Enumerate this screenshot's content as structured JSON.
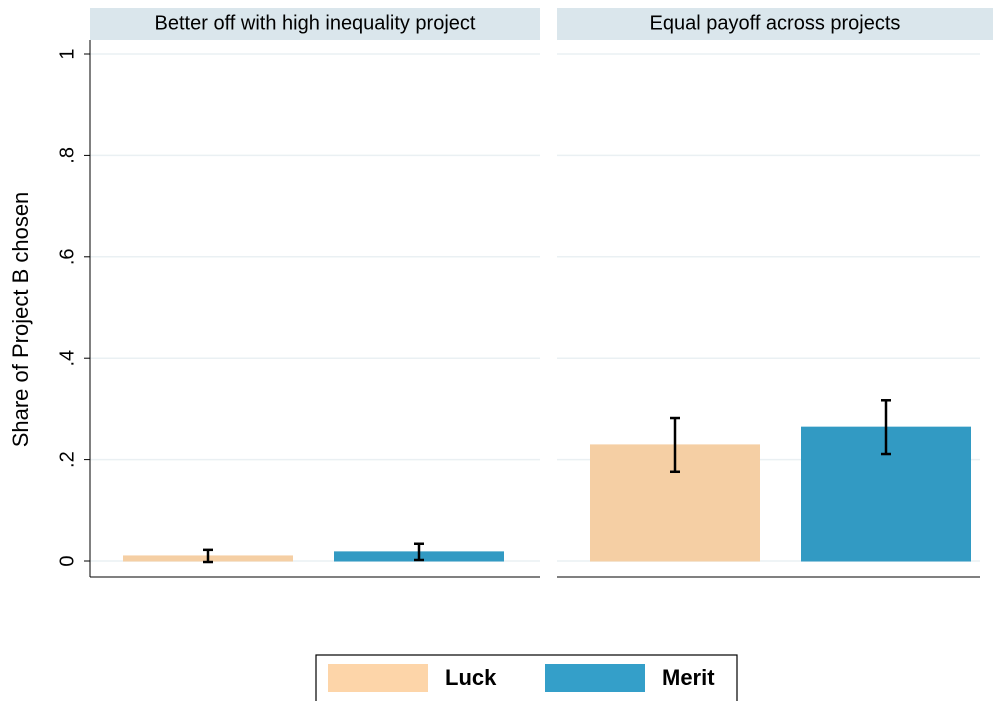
{
  "chart_data": [
    {
      "type": "bar",
      "title": "Better off with high inequality project",
      "y_label": "Share of Project B chosen",
      "ylim": [
        0,
        1
      ],
      "yticks": [
        0,
        {
          "value": 0.2,
          "label": ".2"
        },
        {
          "value": 0.4,
          "label": ".4"
        },
        {
          "value": 0.6,
          "label": ".6"
        },
        {
          "value": 0.8,
          "label": ".8"
        },
        1
      ],
      "grid": true,
      "series": [
        {
          "name": "Luck",
          "color": "#fdd5a9",
          "values": [
            0.01
          ],
          "errors": [
            0.012
          ]
        },
        {
          "name": "Merit",
          "color": "#349fc9",
          "values": [
            0.018
          ],
          "errors": [
            0.016
          ]
        }
      ]
    },
    {
      "type": "bar",
      "title": "Equal payoff across projects",
      "ylim": [
        0,
        1
      ],
      "grid": true,
      "series": [
        {
          "name": "Luck",
          "color": "#fdd5a9",
          "values": [
            0.229
          ],
          "errors": [
            0.053
          ]
        },
        {
          "name": "Merit",
          "color": "#349fc9",
          "values": [
            0.264
          ],
          "errors": [
            0.053
          ]
        }
      ]
    }
  ]
}
